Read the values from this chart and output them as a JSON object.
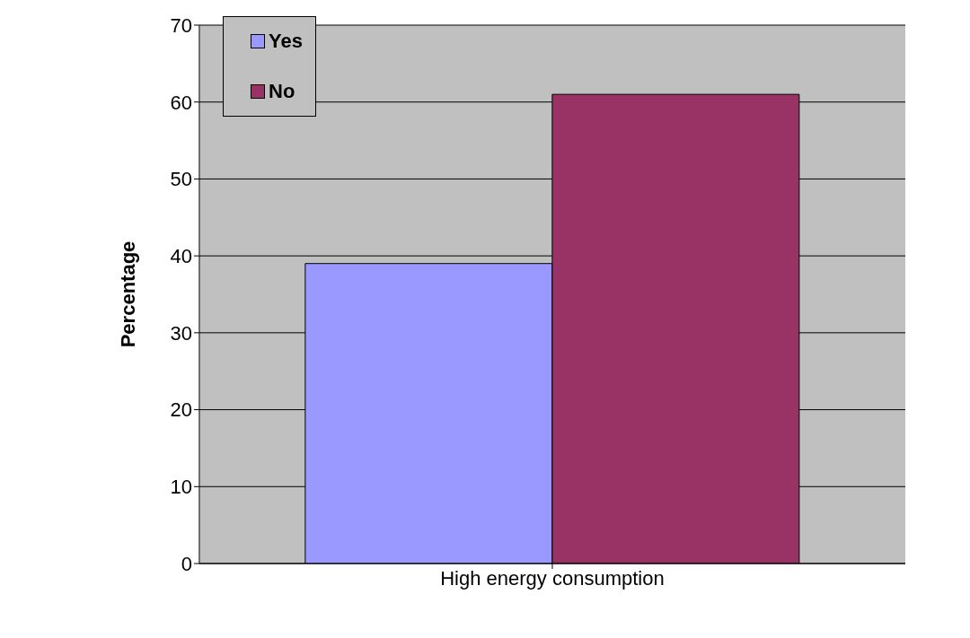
{
  "chart_data": {
    "type": "bar",
    "ylabel": "Percentage",
    "categories": [
      "High energy consumption"
    ],
    "series": [
      {
        "name": "Yes",
        "color": "#9999ff",
        "values": [
          39
        ]
      },
      {
        "name": "No",
        "color": "#993366",
        "values": [
          61
        ]
      }
    ],
    "ylim": [
      0,
      70
    ],
    "yticks": [
      0,
      10,
      20,
      30,
      40,
      50,
      60,
      70
    ],
    "grid": "y",
    "legend": "top left"
  }
}
